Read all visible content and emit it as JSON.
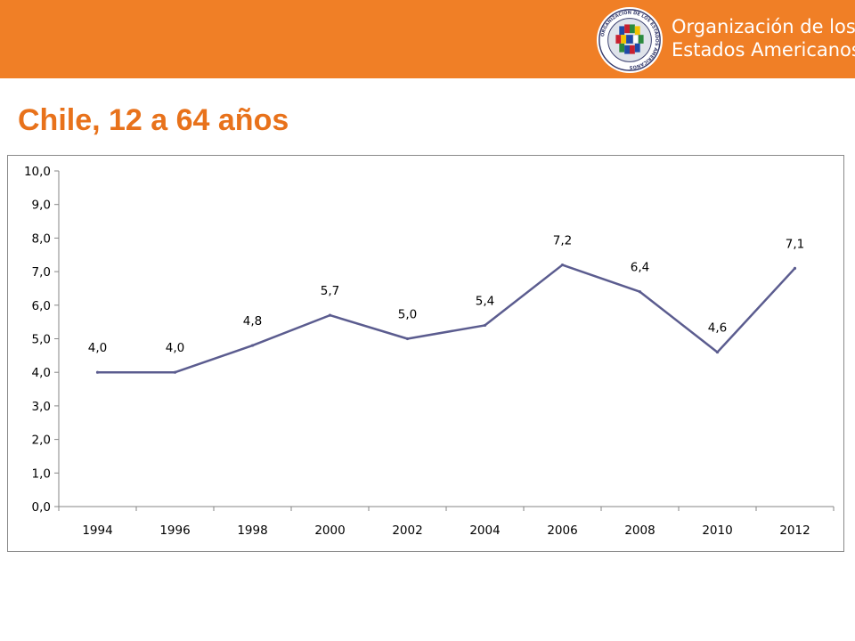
{
  "header": {
    "org_line1": "Organización de los",
    "org_line2": "Estados Americanos",
    "seal_text": "ORGANIZACIÓN DE LOS ESTADOS AMERICANOS",
    "bar_color": "#f07f26"
  },
  "slide": {
    "title": "Chile, 12 a 64 años",
    "title_color": "#e8721b"
  },
  "chart_data": {
    "type": "line",
    "title": "",
    "xlabel": "",
    "ylabel": "",
    "categories": [
      "1994",
      "1996",
      "1998",
      "2000",
      "2002",
      "2004",
      "2006",
      "2008",
      "2010",
      "2012"
    ],
    "series": [
      {
        "color": "#5b5c8f",
        "values": [
          4.0,
          4.0,
          4.8,
          5.7,
          5.0,
          5.4,
          7.2,
          6.4,
          4.6,
          7.1
        ],
        "data_labels": [
          "4,0",
          "4,0",
          "4,8",
          "5,7",
          "5,0",
          "5,4",
          "7,2",
          "6,4",
          "4,6",
          "7,1"
        ]
      }
    ],
    "ylim": [
      0,
      10
    ],
    "yticks": [
      "0,0",
      "1,0",
      "2,0",
      "3,0",
      "4,0",
      "5,0",
      "6,0",
      "7,0",
      "8,0",
      "9,0",
      "10,0"
    ],
    "grid": false,
    "legend": "none"
  }
}
